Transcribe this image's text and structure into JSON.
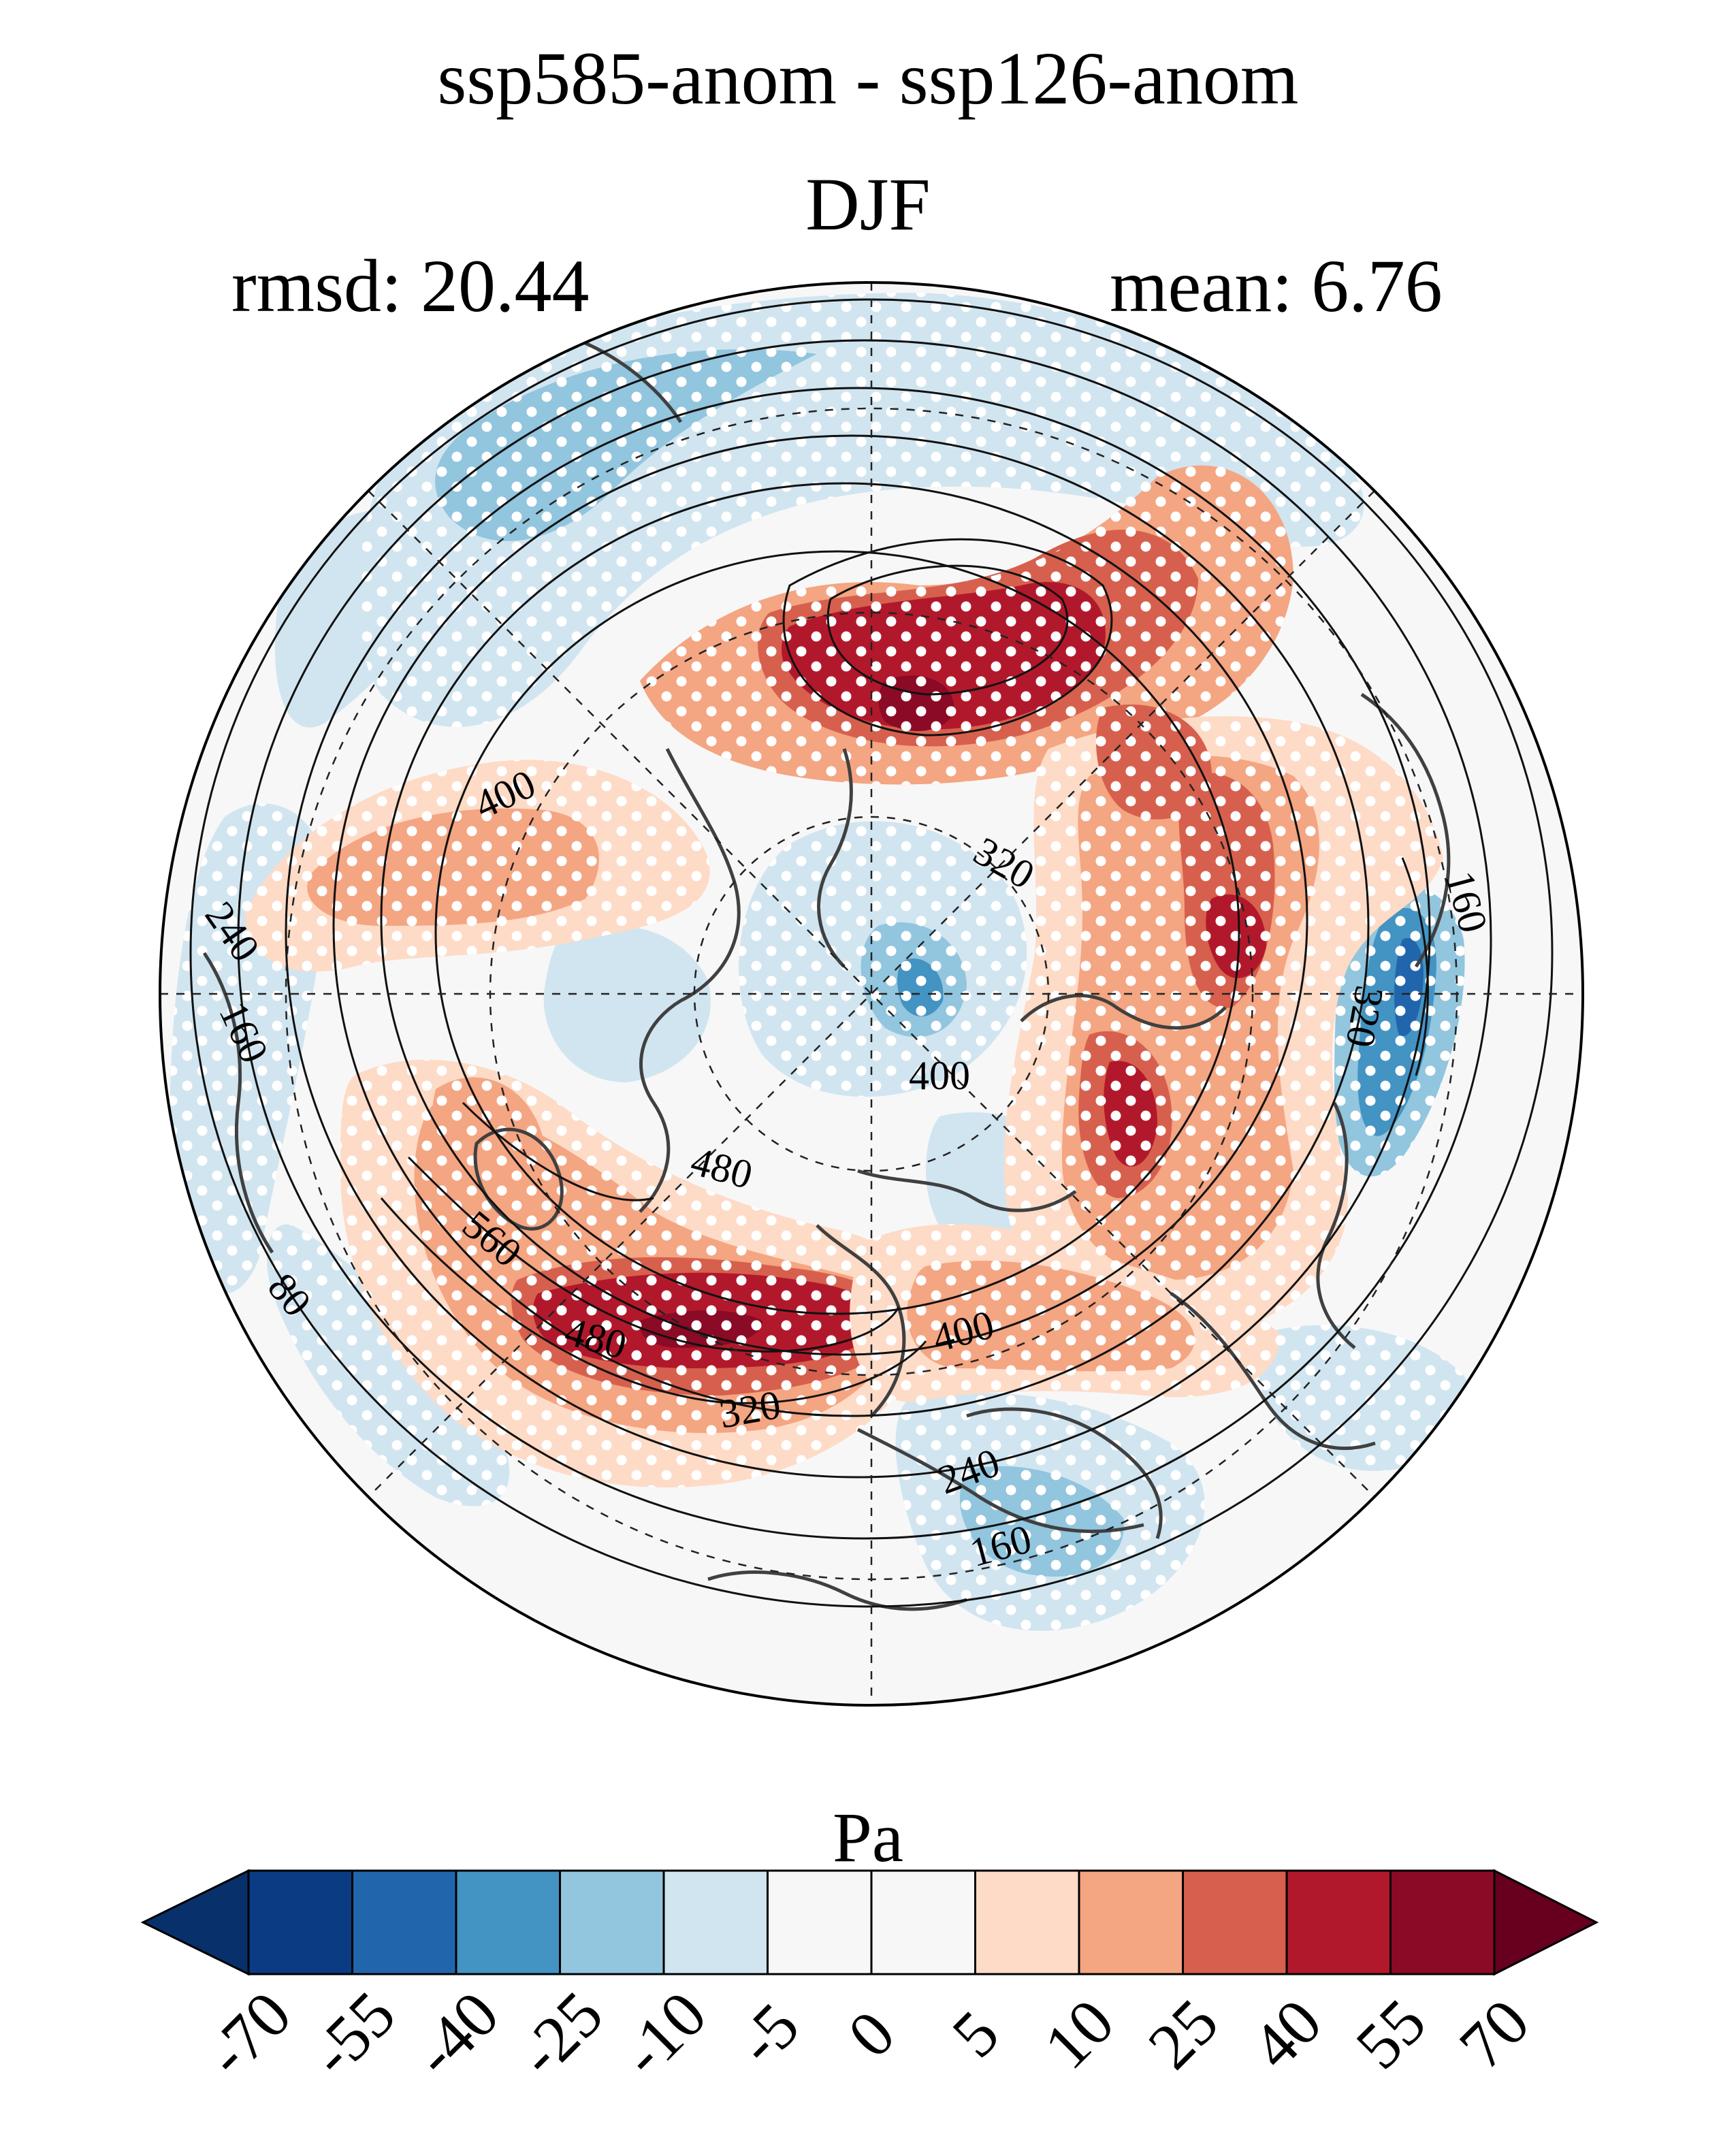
{
  "header": {
    "title": "ssp585-anom - ssp126-anom",
    "season": "DJF",
    "rmsd": "rmsd: 20.44",
    "mean": "mean: 6.76"
  },
  "colorbar": {
    "units": "Pa",
    "ticks": [
      "-70",
      "-55",
      "-40",
      "-25",
      "-10",
      "-5",
      "0",
      "5",
      "10",
      "25",
      "40",
      "55",
      "70"
    ],
    "colors": [
      "#08306b",
      "#0b3b82",
      "#2166ac",
      "#4393c3",
      "#92c5de",
      "#d1e5f0",
      "#f7f7f7",
      "#f7f7f7",
      "#fddbc7",
      "#f4a582",
      "#d6604d",
      "#b2182b",
      "#8b0a25",
      "#67001f"
    ]
  },
  "map": {
    "projection": "north-polar-stereographic",
    "contour_labels": [
      "400",
      "320",
      "240",
      "160",
      "80",
      "400",
      "480",
      "560",
      "480",
      "320",
      "400",
      "240",
      "160",
      "320",
      "160"
    ],
    "field_colors": {
      "neutral": "#f7f7f7",
      "light_blue": "#d1e5f0",
      "mid_blue": "#92c5de",
      "blue": "#4393c3",
      "dark_blue": "#2166ac",
      "light_red": "#fddbc7",
      "salmon": "#f4a582",
      "red": "#d6604d",
      "dark_red": "#b2182b",
      "darkest_red": "#8b0a25"
    }
  }
}
